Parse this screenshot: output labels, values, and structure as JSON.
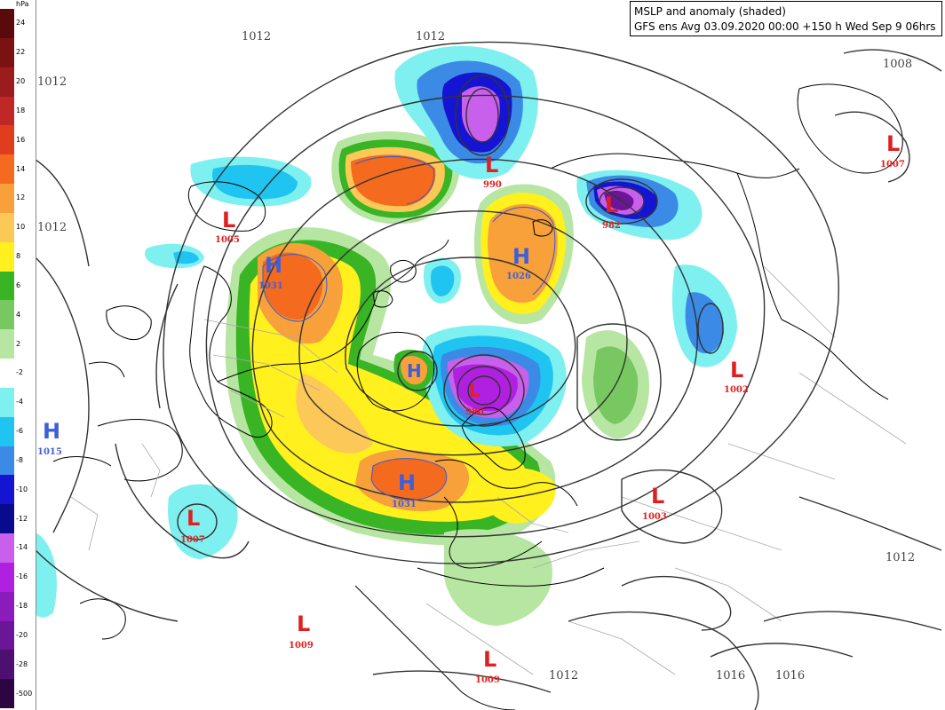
{
  "title": {
    "line1": "MSLP and anomaly (shaded)",
    "line2": "GFS ens Avg 03.09.2020 00:00 +150 h Wed Sep 9 06hrs"
  },
  "legend": {
    "unit": "hPa",
    "entries": [
      {
        "label": "24",
        "color": "#5a0a0a"
      },
      {
        "label": "22",
        "color": "#7a1212"
      },
      {
        "label": "20",
        "color": "#9a1c1c"
      },
      {
        "label": "18",
        "color": "#c02828"
      },
      {
        "label": "16",
        "color": "#e03c1e"
      },
      {
        "label": "14",
        "color": "#f46a1e"
      },
      {
        "label": "12",
        "color": "#f8a03a"
      },
      {
        "label": "10",
        "color": "#fcc858"
      },
      {
        "label": "8",
        "color": "#fff01e"
      },
      {
        "label": "6",
        "color": "#38b424"
      },
      {
        "label": "4",
        "color": "#78c862"
      },
      {
        "label": "2",
        "color": "#b6e6a2"
      },
      {
        "label": "-2",
        "color": "#ffffff"
      },
      {
        "label": "-4",
        "color": "#7ef0f0"
      },
      {
        "label": "-6",
        "color": "#20c4f0"
      },
      {
        "label": "-8",
        "color": "#3a8ae6"
      },
      {
        "label": "-10",
        "color": "#1414d2"
      },
      {
        "label": "-12",
        "color": "#0a0a8c"
      },
      {
        "label": "-14",
        "color": "#c860ec"
      },
      {
        "label": "-16",
        "color": "#b020e0"
      },
      {
        "label": "-18",
        "color": "#8a1cbc"
      },
      {
        "label": "-20",
        "color": "#6a1696"
      },
      {
        "label": "-28",
        "color": "#4e1070"
      },
      {
        "label": "-500",
        "color": "#2c0640"
      }
    ]
  },
  "isobar_labels": [
    "1012",
    "1012",
    "1012",
    "1012",
    "1008",
    "1012",
    "1012",
    "1016",
    "1016"
  ],
  "pressure_systems": [
    {
      "type": "L",
      "value": "990"
    },
    {
      "type": "L",
      "value": "1005"
    },
    {
      "type": "H",
      "value": "1031"
    },
    {
      "type": "H",
      "value": "1026"
    },
    {
      "type": "L",
      "value": "982"
    },
    {
      "type": "L",
      "value": "1007"
    },
    {
      "type": "L",
      "value": "1002"
    },
    {
      "type": "H",
      "value": "1015"
    },
    {
      "type": "L",
      "value": "1007"
    },
    {
      "type": "H",
      "value": "1031"
    },
    {
      "type": "L",
      "value": "1003"
    },
    {
      "type": "L",
      "value": "1009"
    },
    {
      "type": "L",
      "value": "1009"
    },
    {
      "type": "H",
      "value": ""
    },
    {
      "type": "L",
      "value": "980"
    }
  ],
  "colors": {
    "high": "#3f5fd8",
    "low": "#e02020"
  }
}
